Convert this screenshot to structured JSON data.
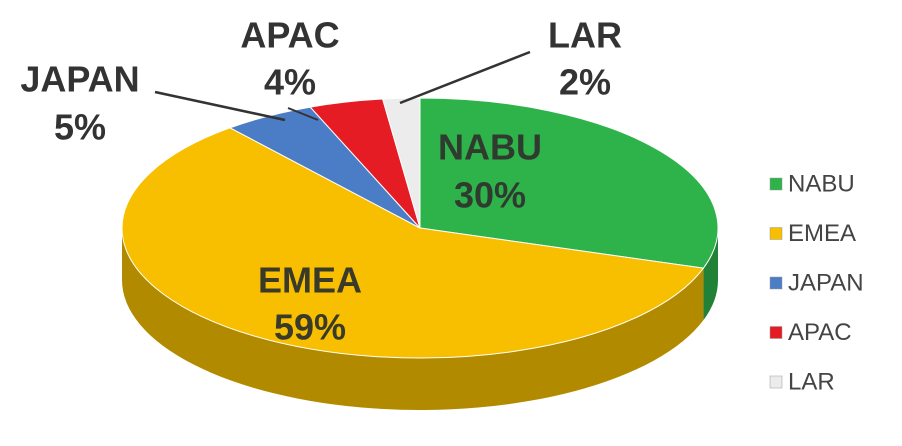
{
  "chart_data": {
    "type": "pie",
    "categories": [
      "NABU",
      "EMEA",
      "JAPAN",
      "APAC",
      "LAR"
    ],
    "values": [
      30,
      59,
      5,
      4,
      2
    ],
    "value_labels": [
      "30%",
      "59%",
      "5%",
      "4%",
      "2%"
    ],
    "colors": [
      "#2eb34b",
      "#f7bf00",
      "#4b7dc6",
      "#e51c24",
      "#ececec"
    ],
    "legend": "right"
  }
}
